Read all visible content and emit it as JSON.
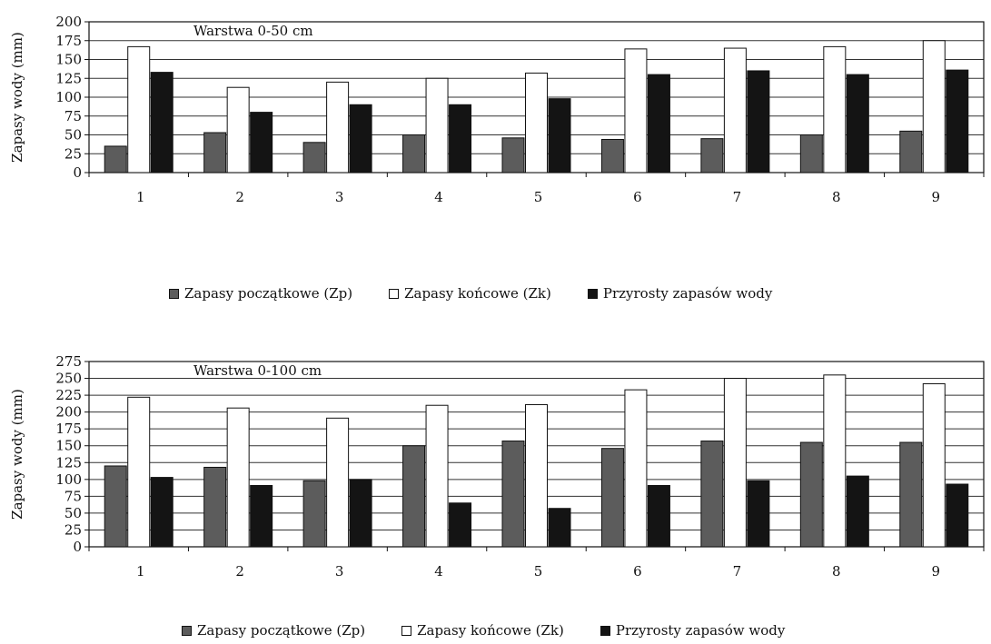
{
  "chart_data": [
    {
      "type": "bar",
      "annotation": "Warstwa 0-50 cm",
      "ylabel": "Zapasy wody (mm)",
      "xlabel": "",
      "ylim": [
        0,
        200
      ],
      "yticks": [
        0,
        25,
        50,
        75,
        100,
        125,
        150,
        175,
        200
      ],
      "categories": [
        "1",
        "2",
        "3",
        "4",
        "5",
        "6",
        "7",
        "8",
        "9"
      ],
      "grid": true,
      "legend_position": "bottom",
      "series": [
        {
          "name": "Zapasy początkowe (Zp)",
          "color": "#5c5c5c",
          "values": [
            35,
            53,
            40,
            50,
            46,
            44,
            45,
            50,
            55
          ]
        },
        {
          "name": "Zapasy końcowe (Zk)",
          "color": "#ffffff",
          "values": [
            167,
            113,
            120,
            125,
            132,
            164,
            165,
            167,
            175
          ]
        },
        {
          "name": "Przyrosty zapasów wody",
          "color": "#141414",
          "values": [
            133,
            80,
            90,
            90,
            98,
            130,
            135,
            130,
            136
          ]
        }
      ]
    },
    {
      "type": "bar",
      "annotation": "Warstwa 0-100 cm",
      "ylabel": "Zapasy wody (mm)",
      "xlabel": "",
      "ylim": [
        0,
        275
      ],
      "yticks": [
        0,
        25,
        50,
        75,
        100,
        125,
        150,
        175,
        200,
        225,
        250,
        275
      ],
      "categories": [
        "1",
        "2",
        "3",
        "4",
        "5",
        "6",
        "7",
        "8",
        "9"
      ],
      "grid": true,
      "legend_position": "bottom",
      "series": [
        {
          "name": "Zapasy początkowe (Zp)",
          "color": "#5c5c5c",
          "values": [
            120,
            118,
            98,
            150,
            157,
            146,
            157,
            155,
            155
          ]
        },
        {
          "name": "Zapasy końcowe (Zk)",
          "color": "#ffffff",
          "values": [
            222,
            206,
            191,
            210,
            211,
            233,
            250,
            255,
            242
          ]
        },
        {
          "name": "Przyrosty zapasów wody",
          "color": "#141414",
          "values": [
            103,
            91,
            100,
            65,
            57,
            91,
            98,
            105,
            93
          ]
        }
      ]
    }
  ],
  "legends": [
    {
      "items": [
        "Zapasy początkowe (Zp)",
        "Zapasy końcowe (Zk)",
        "Przyrosty zapasów wody"
      ]
    },
    {
      "items": [
        "Zapasy początkowe (Zp)",
        "Zapasy końcowe (Zk)",
        "Przyrosty zapasów wody"
      ]
    }
  ]
}
